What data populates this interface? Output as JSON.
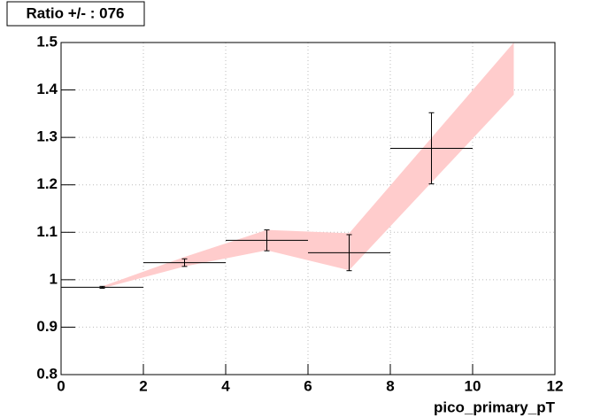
{
  "chart_data": {
    "type": "errorbar",
    "title": "Ratio +/- : 076",
    "x_label": "pico_primary_pT",
    "x": [
      1,
      3,
      5,
      7,
      9
    ],
    "xerr": [
      1,
      1,
      1,
      1,
      1
    ],
    "values": [
      0.984,
      1.036,
      1.083,
      1.057,
      1.277
    ],
    "yerr": [
      0.002,
      0.008,
      0.022,
      0.038,
      0.075
    ],
    "color": "#000000",
    "band": {
      "x": [
        1,
        3,
        5,
        7,
        11
      ],
      "lower": [
        0.982,
        1.028,
        1.062,
        1.02,
        1.39
      ],
      "upper": [
        0.986,
        1.048,
        1.105,
        1.098,
        1.5
      ],
      "color": "#ffcccc"
    },
    "xlim": [
      0,
      12
    ],
    "xticks": [
      0,
      2,
      4,
      6,
      8,
      10,
      12
    ],
    "ylim": [
      0.8,
      1.5
    ],
    "yticks": [
      0.8,
      0.9,
      1,
      1.1,
      1.2,
      1.3,
      1.4,
      1.5
    ],
    "grid": true
  }
}
